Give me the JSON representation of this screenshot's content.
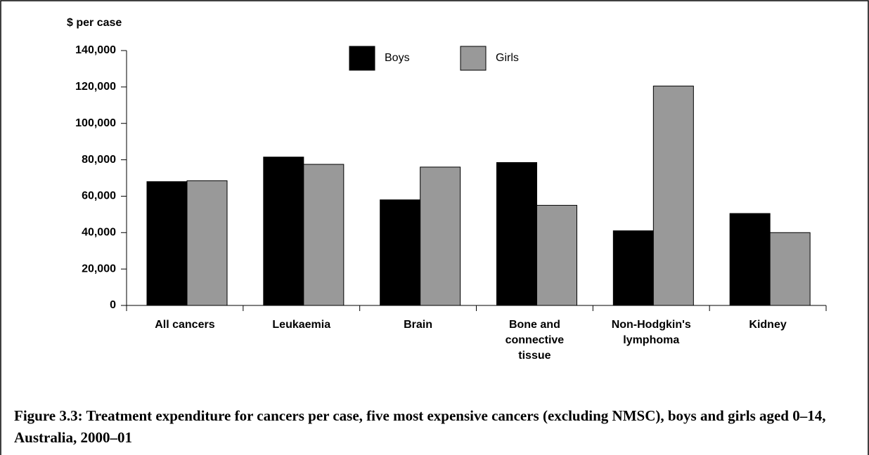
{
  "chart_data": {
    "type": "bar",
    "caption": "Figure 3.3: Treatment expenditure for cancers per case, five most expensive cancers (excluding NMSC), boys and girls aged 0–14, Australia, 2000–01",
    "ylabel": "$ per case",
    "categories": [
      "All cancers",
      "Leukaemia",
      "Brain",
      "Bone and connective tissue",
      "Non-Hodgkin's lymphoma",
      "Kidney"
    ],
    "series": [
      {
        "name": "Boys",
        "color": "#000000",
        "values": [
          68000,
          81500,
          58000,
          78500,
          41000,
          50500
        ]
      },
      {
        "name": "Girls",
        "color": "#999999",
        "values": [
          68500,
          77500,
          76000,
          55000,
          120500,
          40000
        ]
      }
    ],
    "ylim": [
      0,
      140000
    ],
    "yticks": [
      0,
      {
        "value": 20000,
        "label": "20,000"
      },
      {
        "value": 40000,
        "label": "40,000"
      },
      {
        "value": 60000,
        "label": "60,000"
      },
      {
        "value": 80000,
        "label": "80,000"
      },
      {
        "value": 100000,
        "label": "100,000"
      },
      {
        "value": 120000,
        "label": "120,000"
      },
      {
        "value": 140000,
        "label": "140,000"
      }
    ],
    "legend": "top"
  }
}
